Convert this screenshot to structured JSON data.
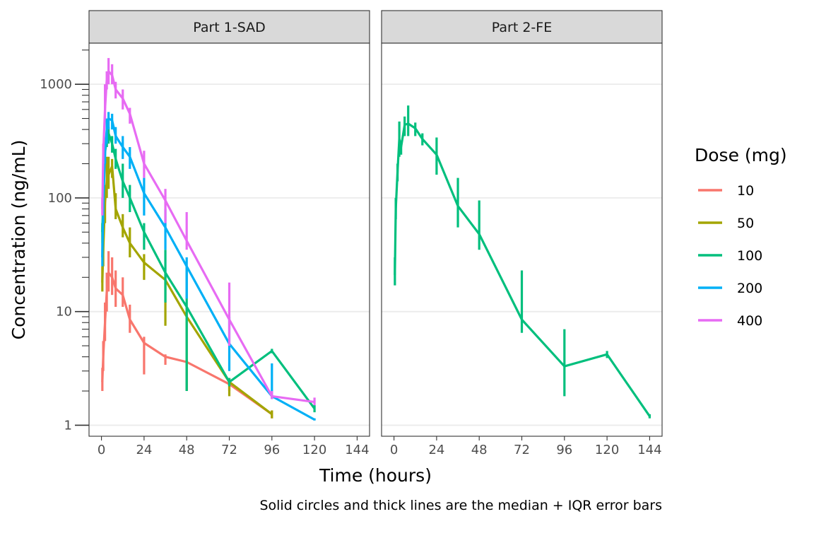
{
  "chart_data": {
    "type": "line",
    "title": "",
    "xlabel": "Time (hours)",
    "ylabel": "Concentration (ng/mL)",
    "caption": "Solid circles and thick lines are the median + IQR error bars",
    "y_scale": "log10",
    "ylim": [
      0.8,
      2300
    ],
    "xlim": [
      -7,
      151
    ],
    "x_ticks": [
      0,
      24,
      48,
      72,
      96,
      120,
      144
    ],
    "y_ticks": [
      1,
      10,
      100,
      1000
    ],
    "y_tick_labels": [
      "1",
      "10",
      "100",
      "1000"
    ],
    "grid": true,
    "legend": {
      "title": "Dose (mg)",
      "position": "right",
      "entries": [
        {
          "label": "10",
          "color": "#F8766D"
        },
        {
          "label": "50",
          "color": "#A3A500"
        },
        {
          "label": "100",
          "color": "#00BF7D"
        },
        {
          "label": "200",
          "color": "#00B0F6"
        },
        {
          "label": "400",
          "color": "#E76BF3"
        }
      ]
    },
    "panels": [
      {
        "title": "Part 1-SAD",
        "series": [
          {
            "name": "10",
            "color": "#F8766D",
            "x": [
              0.5,
              1,
              2,
              3,
              4,
              6,
              8,
              12,
              16,
              24,
              36,
              48,
              72,
              96
            ],
            "y": [
              2.4,
              4.0,
              8.0,
              15.0,
              22.0,
              20.0,
              16.0,
              14.0,
              8.5,
              5.3,
              4.0,
              3.6,
              2.3,
              1.25
            ],
            "lo": [
              2.0,
              3.0,
              5.5,
              10.0,
              15.0,
              14.0,
              11.0,
              11.0,
              6.5,
              2.8,
              3.4,
              2.0,
              2.0,
              1.15
            ],
            "hi": [
              3.2,
              5.5,
              12.0,
              22.0,
              34.0,
              30.0,
              23.0,
              20.0,
              11.5,
              6.0,
              4.2,
              3.8,
              2.6,
              1.35
            ]
          },
          {
            "name": "50",
            "color": "#A3A500",
            "x": [
              0.5,
              1,
              2,
              3,
              4,
              6,
              8,
              12,
              16,
              24,
              36,
              48,
              72,
              96
            ],
            "y": [
              18,
              35,
              90,
              140,
              160,
              190,
              80,
              55,
              40,
              27,
              19,
              9,
              2.4,
              1.25
            ],
            "lo": [
              15,
              25,
              60,
              100,
              120,
              150,
              65,
              45,
              30,
              19,
              7.5,
              2.0,
              1.8,
              1.15
            ],
            "hi": [
              25,
              50,
              130,
              230,
              230,
              220,
              110,
              72,
              55,
              32,
              22,
              11,
              2.6,
              1.35
            ]
          },
          {
            "name": "100",
            "color": "#00BF7D",
            "x": [
              0.5,
              1,
              2,
              3,
              4,
              6,
              8,
              12,
              16,
              24,
              36,
              48,
              72,
              96,
              120
            ],
            "y": [
              50,
              100,
              250,
              330,
              370,
              300,
              220,
              140,
              100,
              50,
              22,
              11,
              2.4,
              4.5,
              1.4
            ],
            "lo": [
              40,
              80,
              200,
              280,
              300,
              250,
              180,
              100,
              75,
              35,
              12,
              2.0,
              2.2,
              4.3,
              1.3
            ],
            "hi": [
              60,
              120,
              300,
              380,
              420,
              350,
              270,
              200,
              130,
              60,
              35,
              25,
              2.6,
              4.7,
              1.5
            ]
          },
          {
            "name": "200",
            "color": "#00B0F6",
            "x": [
              0.5,
              1,
              2,
              3,
              4,
              6,
              8,
              12,
              16,
              24,
              36,
              48,
              72,
              96,
              120
            ],
            "y": [
              30,
              80,
              260,
              400,
              500,
              480,
              350,
              280,
              230,
              110,
              55,
              25,
              5.2,
              1.8,
              1.12
            ],
            "lo": [
              25,
              60,
              200,
              300,
              400,
              400,
              300,
              220,
              180,
              70,
              35,
              13,
              3.0,
              1.7,
              1.1
            ],
            "hi": [
              40,
              100,
              300,
              500,
              570,
              550,
              420,
              350,
              280,
              150,
              80,
              30,
              9.0,
              3.5,
              1.15
            ]
          },
          {
            "name": "400",
            "color": "#E76BF3",
            "x": [
              0.5,
              1,
              2,
              3,
              4,
              6,
              8,
              12,
              16,
              24,
              36,
              48,
              72,
              96,
              120
            ],
            "y": [
              80,
              250,
              600,
              1100,
              1300,
              1200,
              900,
              750,
              550,
              200,
              95,
              42,
              8.5,
              1.8,
              1.6
            ],
            "lo": [
              70,
              200,
              500,
              900,
              1000,
              1000,
              750,
              600,
              450,
              150,
              60,
              35,
              5.0,
              1.7,
              1.5
            ],
            "hi": [
              100,
              300,
              1000,
              1300,
              1700,
              1500,
              1050,
              900,
              620,
              260,
              120,
              75,
              18,
              2.0,
              1.75
            ]
          }
        ]
      },
      {
        "title": "Part 2-FE",
        "series": [
          {
            "name": "100",
            "color": "#00BF7D",
            "x": [
              0.5,
              1,
              2,
              3,
              4,
              6,
              8,
              12,
              16,
              24,
              36,
              48,
              72,
              96,
              120,
              144
            ],
            "y": [
              21,
              80,
              170,
              330,
              280,
              440,
              450,
              410,
              330,
              240,
              85,
              48,
              8.5,
              3.3,
              4.2,
              1.2
            ],
            "lo": [
              17,
              65,
              140,
              230,
              240,
              350,
              350,
              350,
              290,
              160,
              55,
              35,
              6.5,
              1.8,
              3.9,
              1.15
            ],
            "hi": [
              30,
              100,
              200,
              470,
              320,
              520,
              650,
              460,
              370,
              340,
              150,
              95,
              23,
              7.0,
              4.5,
              1.25
            ]
          }
        ]
      }
    ]
  }
}
